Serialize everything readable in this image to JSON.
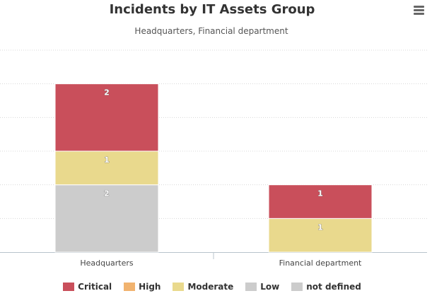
{
  "chart_data": {
    "type": "bar",
    "stacked": true,
    "title": "Incidents by IT Assets Group",
    "subtitle": "Headquarters, Financial department",
    "xlabel": "",
    "ylabel": "",
    "categories": [
      "Headquarters",
      "Financial department"
    ],
    "ylim": [
      0,
      6
    ],
    "grid": true,
    "legend_position": "bottom",
    "series": [
      {
        "name": "Critical",
        "color": "#c94f5b",
        "values": [
          2,
          1
        ]
      },
      {
        "name": "High",
        "color": "#f1b36f",
        "values": [
          0,
          0
        ]
      },
      {
        "name": "Moderate",
        "color": "#e9d98d",
        "values": [
          1,
          1
        ]
      },
      {
        "name": "Low",
        "color": "#cccccc",
        "values": [
          2,
          0
        ]
      },
      {
        "name": "not defined",
        "color": "#cccccc",
        "values": [
          0,
          0
        ]
      }
    ]
  },
  "ui": {
    "menu_icon": "hamburger-menu-icon"
  }
}
